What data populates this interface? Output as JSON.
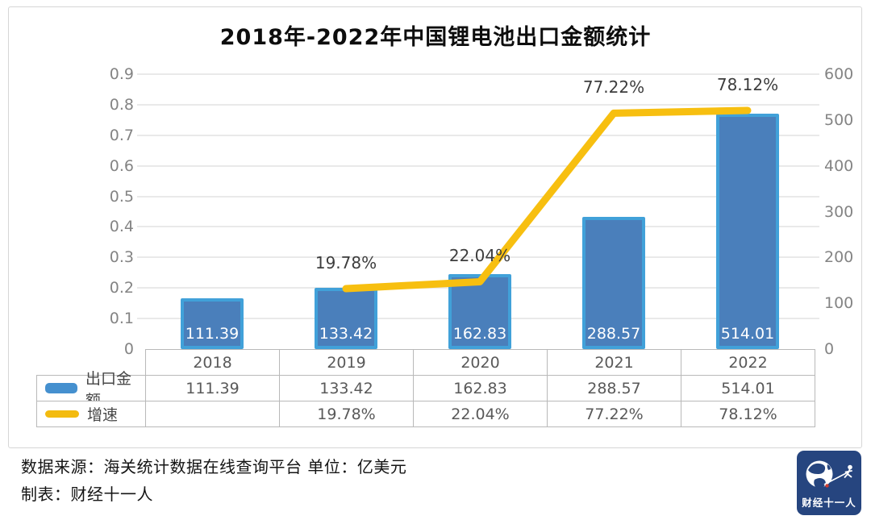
{
  "chart_data": {
    "type": "combo",
    "title": "2018年-2022年中国锂电池出口金额统计",
    "categories": [
      "2018",
      "2019",
      "2020",
      "2021",
      "2022"
    ],
    "series": [
      {
        "name": "出口金额",
        "type": "bar",
        "axis": "right",
        "values": [
          111.39,
          133.42,
          162.83,
          288.57,
          514.01
        ],
        "labels": [
          "111.39",
          "133.42",
          "162.83",
          "288.57",
          "514.01"
        ],
        "color": "#4a7fbb",
        "border_color": "#41a1d9"
      },
      {
        "name": "增速",
        "type": "line",
        "axis": "left",
        "values": [
          null,
          19.78,
          22.04,
          77.22,
          78.12
        ],
        "labels": [
          "",
          "19.78%",
          "22.04%",
          "77.22%",
          "78.12%"
        ],
        "color": "#f7bf10"
      }
    ],
    "left_axis": {
      "min": 0,
      "max": 0.9,
      "step": 0.1,
      "ticks": [
        "0",
        "0.1",
        "0.2",
        "0.3",
        "0.4",
        "0.5",
        "0.6",
        "0.7",
        "0.8",
        "0.9"
      ]
    },
    "right_axis": {
      "min": 0,
      "max": 600,
      "step": 100,
      "ticks": [
        "0",
        "100",
        "200",
        "300",
        "400",
        "500",
        "600"
      ]
    },
    "grid": true,
    "legend_position": "table-left"
  },
  "table": {
    "header_years": [
      "2018",
      "2019",
      "2020",
      "2021",
      "2022"
    ],
    "rows": [
      {
        "label": "出口金额",
        "swatch": "bar",
        "values": [
          "111.39",
          "133.42",
          "162.83",
          "288.57",
          "514.01"
        ]
      },
      {
        "label": "增速",
        "swatch": "line",
        "values": [
          "",
          "19.78%",
          "22.04%",
          "77.22%",
          "78.12%"
        ]
      }
    ]
  },
  "footer": {
    "source_line": "数据来源：海关统计数据在线查询平台 单位：亿美元",
    "maker_line": "制表：财经十一人",
    "logo_text": "财经十一人"
  },
  "colors": {
    "bar_fill": "#4a7fbb",
    "bar_border": "#41a1d9",
    "line": "#f7bf10",
    "grid": "#e9e9e9",
    "axis_text": "#848484",
    "table_border": "#b9b9b9",
    "logo_bg": "#26457f",
    "logo_red_dot": "#cf3b2f"
  }
}
